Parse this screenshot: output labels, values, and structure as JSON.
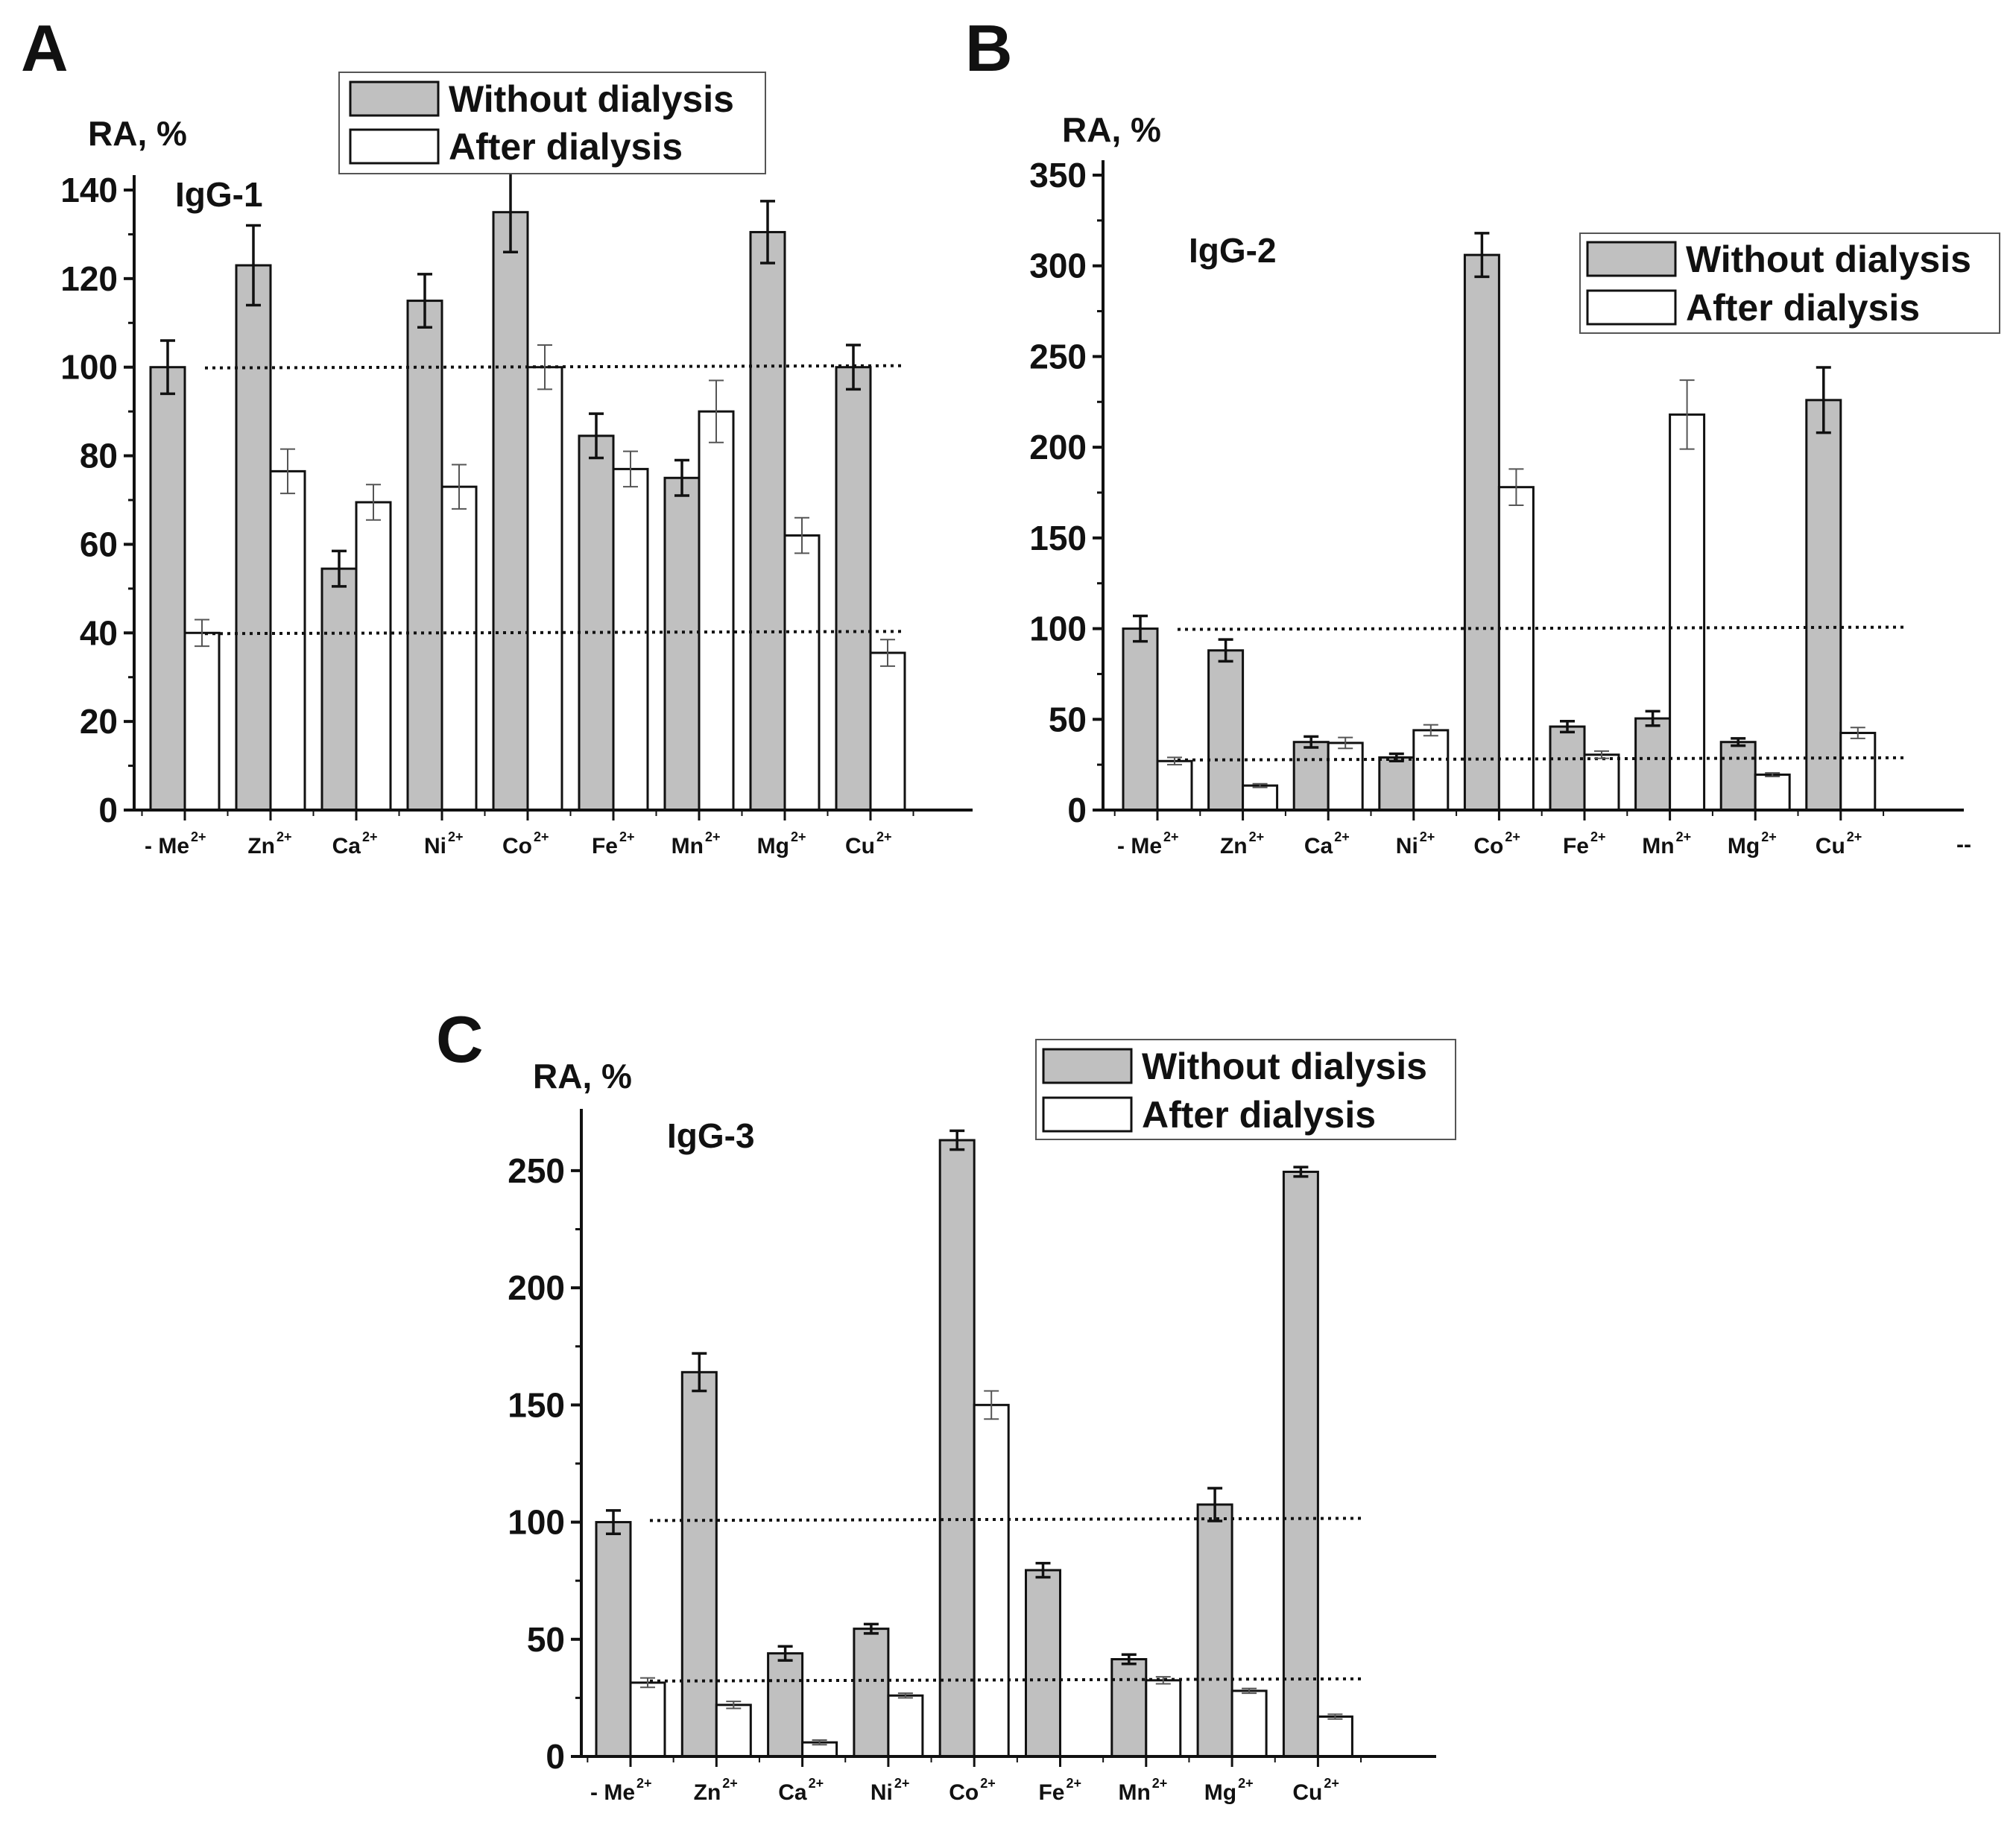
{
  "figure": {
    "colors": {
      "without": "#c0c0c0",
      "after": "#ffffff",
      "stroke": "#111111",
      "errorbar": "#111111"
    }
  },
  "chart_data": [
    {
      "panel": "A",
      "type": "bar",
      "ylabel": "RA, %",
      "series_note": "IgG-1",
      "ylim": [
        0,
        140
      ],
      "yticks": [
        0,
        20,
        40,
        60,
        80,
        100,
        120,
        140
      ],
      "legend_position": "top-center",
      "categories": [
        {
          "base": "- Me",
          "sup": "2+"
        },
        {
          "base": "Zn",
          "sup": "2+"
        },
        {
          "base": "Ca",
          "sup": "2+"
        },
        {
          "base": "Ni",
          "sup": "2+"
        },
        {
          "base": "Co",
          "sup": "2+"
        },
        {
          "base": "Fe",
          "sup": "2+"
        },
        {
          "base": "Mn",
          "sup": "2+"
        },
        {
          "base": "Mg",
          "sup": "2+"
        },
        {
          "base": "Cu",
          "sup": "2+"
        }
      ],
      "series": [
        {
          "name": "Without dialysis",
          "values": [
            100,
            123,
            54.5,
            115,
            135,
            84.5,
            75,
            130.5,
            100
          ],
          "errors": [
            6,
            9,
            4,
            6,
            9,
            5,
            4,
            7,
            5
          ]
        },
        {
          "name": "After dialysis",
          "values": [
            40,
            76.5,
            69.5,
            73,
            100,
            77,
            90,
            62,
            35.5
          ],
          "errors": [
            3,
            5,
            4,
            5,
            5,
            4,
            7,
            4,
            3
          ]
        }
      ],
      "reference_lines": [
        100,
        40
      ],
      "extra_tick_label": ""
    },
    {
      "panel": "B",
      "type": "bar",
      "ylabel": "RA, %",
      "series_note": "IgG-2",
      "ylim": [
        0,
        350
      ],
      "yticks": [
        0,
        50,
        100,
        150,
        200,
        250,
        300,
        350
      ],
      "legend_position": "top-right",
      "categories": [
        {
          "base": "- Me",
          "sup": "2+"
        },
        {
          "base": "Zn",
          "sup": "2+"
        },
        {
          "base": "Ca",
          "sup": "2+"
        },
        {
          "base": "Ni",
          "sup": "2+"
        },
        {
          "base": "Co",
          "sup": "2+"
        },
        {
          "base": "Fe",
          "sup": "2+"
        },
        {
          "base": "Mn",
          "sup": "2+"
        },
        {
          "base": "Mg",
          "sup": "2+"
        },
        {
          "base": "Cu",
          "sup": "2+"
        }
      ],
      "series": [
        {
          "name": "Without dialysis",
          "values": [
            100,
            88,
            37.5,
            29,
            306,
            46,
            50.5,
            37.5,
            226
          ],
          "errors": [
            7,
            6,
            3,
            2,
            12,
            3,
            4,
            2,
            18
          ]
        },
        {
          "name": "After dialysis",
          "values": [
            27,
            13.5,
            37,
            44,
            178,
            30.5,
            218,
            19.5,
            42.5
          ],
          "errors": [
            2,
            1,
            3,
            3,
            10,
            2,
            19,
            1,
            3
          ]
        }
      ],
      "reference_lines": [
        100,
        28
      ],
      "extra_tick_label": "--"
    },
    {
      "panel": "C",
      "type": "bar",
      "ylabel": "RA, %",
      "series_note": "IgG-3",
      "ylim": [
        0,
        270
      ],
      "yticks": [
        0,
        50,
        100,
        150,
        200,
        250
      ],
      "legend_position": "top-center",
      "categories": [
        {
          "base": "- Me",
          "sup": "2+"
        },
        {
          "base": "Zn",
          "sup": "2+"
        },
        {
          "base": "Ca",
          "sup": "2+"
        },
        {
          "base": "Ni",
          "sup": "2+"
        },
        {
          "base": "Co",
          "sup": "2+"
        },
        {
          "base": "Fe",
          "sup": "2+"
        },
        {
          "base": "Mn",
          "sup": "2+"
        },
        {
          "base": "Mg",
          "sup": "2+"
        },
        {
          "base": "Cu",
          "sup": "2+"
        }
      ],
      "series": [
        {
          "name": "Without dialysis",
          "values": [
            100,
            164,
            44,
            54.5,
            263,
            79.5,
            41.5,
            107.5,
            249.5
          ],
          "errors": [
            5,
            8,
            3,
            2,
            4,
            3,
            2,
            7,
            2
          ]
        },
        {
          "name": "After dialysis",
          "values": [
            31.5,
            22,
            6,
            26,
            150,
            0,
            32.5,
            28,
            17
          ],
          "errors": [
            2,
            1.5,
            1,
            1,
            6,
            0,
            1.5,
            1,
            1
          ]
        }
      ],
      "reference_lines": [
        101,
        32.5
      ],
      "extra_tick_label": ""
    }
  ]
}
